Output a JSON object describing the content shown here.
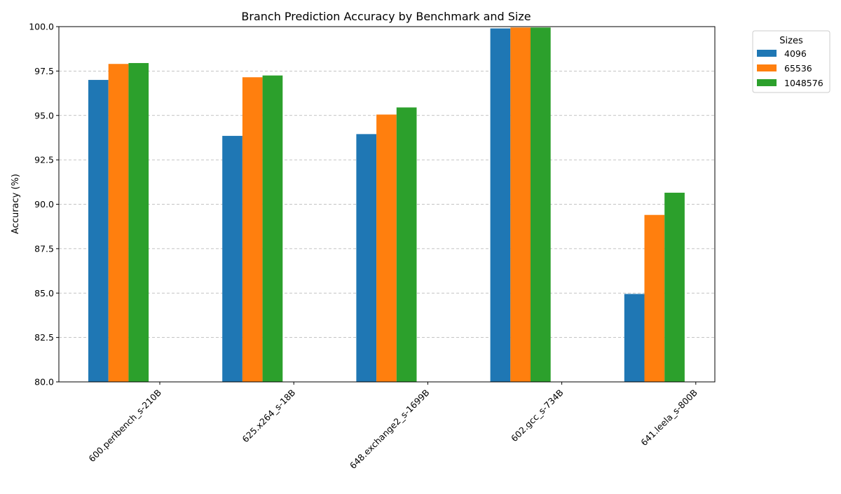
{
  "chart_data": {
    "type": "bar",
    "title": "Branch Prediction Accuracy by Benchmark and Size",
    "xlabel": "",
    "ylabel": "Accuracy (%)",
    "ylim": [
      80,
      100
    ],
    "yticks": [
      "80.0",
      "82.5",
      "85.0",
      "87.5",
      "90.0",
      "92.5",
      "95.0",
      "97.5",
      "100.0"
    ],
    "grid": "y-dashed",
    "categories": [
      "600.perlbench_s-210B",
      "625.x264_s-18B",
      "648.exchange2_s-1699B",
      "602.gcc_s-734B",
      "641.leela_s-800B"
    ],
    "legend": {
      "title": "Sizes",
      "placement": "outside-top-right"
    },
    "series": [
      {
        "name": "4096",
        "color": "#1f77b4",
        "values": [
          97.0,
          93.85,
          93.95,
          99.9,
          84.95
        ]
      },
      {
        "name": "65536",
        "color": "#ff7f0e",
        "values": [
          97.9,
          97.15,
          95.05,
          99.95,
          89.4
        ]
      },
      {
        "name": "1048576",
        "color": "#2ca02c",
        "values": [
          97.95,
          97.25,
          95.45,
          99.95,
          90.65
        ]
      }
    ]
  }
}
